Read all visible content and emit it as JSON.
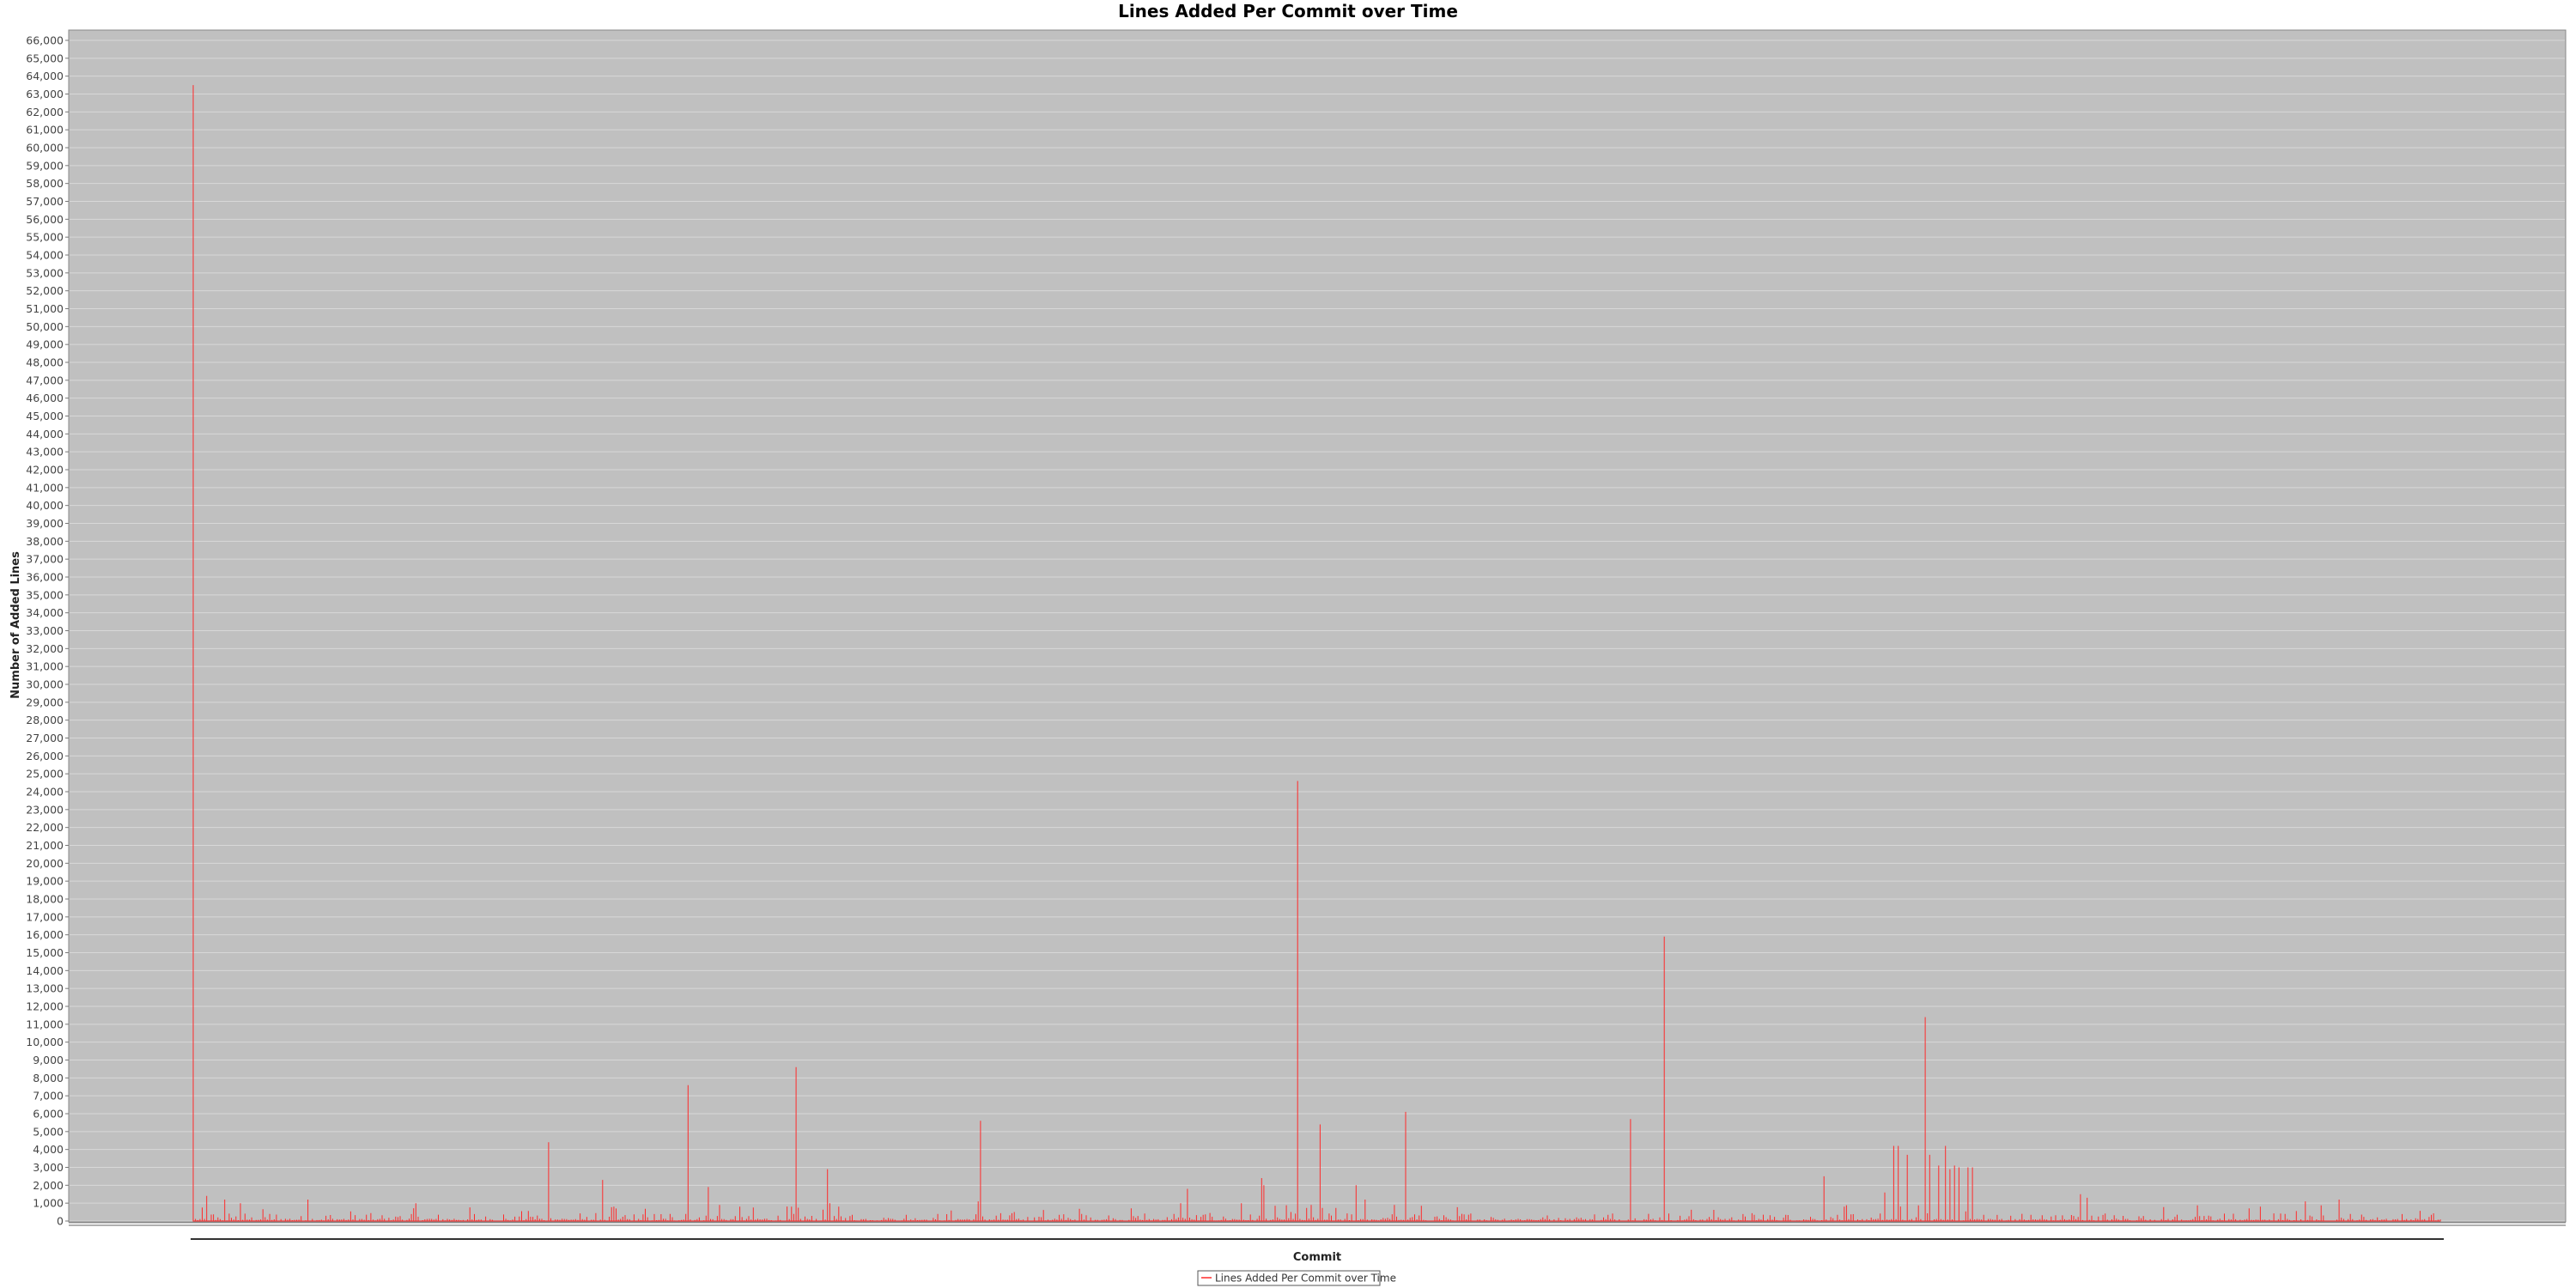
{
  "chart_data": {
    "type": "line",
    "title": "Lines Added Per Commit over Time",
    "xlabel": "Commit",
    "ylabel": "Number of Added Lines",
    "ylim": [
      0,
      66000
    ],
    "ytick_step": 1000,
    "xtick_labels": "none",
    "grid": true,
    "legend_position": "bottom-center",
    "colors": {
      "plot_background": "#c0c0c0",
      "gridline": "#d8d8d8",
      "series": "#ff2a2a"
    },
    "series": [
      {
        "name": "Lines Added Per Commit over Time",
        "color": "#ff2a2a",
        "x_range": [
          1,
          1000
        ],
        "spikes": [
          [
            1,
            63500
          ],
          [
            7,
            1400
          ],
          [
            15,
            1200
          ],
          [
            22,
            1000
          ],
          [
            52,
            1200
          ],
          [
            100,
            1000
          ],
          [
            159,
            4400
          ],
          [
            183,
            2300
          ],
          [
            189,
            700
          ],
          [
            220,
            400
          ],
          [
            221,
            7600
          ],
          [
            230,
            1900
          ],
          [
            235,
            900
          ],
          [
            269,
            8600
          ],
          [
            284,
            1000
          ],
          [
            283,
            2900
          ],
          [
            350,
            1100
          ],
          [
            351,
            5600
          ],
          [
            440,
            1000
          ],
          [
            443,
            1800
          ],
          [
            467,
            1000
          ],
          [
            476,
            2400
          ],
          [
            477,
            2000
          ],
          [
            492,
            24600
          ],
          [
            498,
            900
          ],
          [
            502,
            5400
          ],
          [
            518,
            2000
          ],
          [
            522,
            1200
          ],
          [
            535,
            900
          ],
          [
            540,
            6100
          ],
          [
            640,
            5700
          ],
          [
            655,
            15900
          ],
          [
            726,
            2500
          ],
          [
            753,
            1600
          ],
          [
            757,
            4200
          ],
          [
            759,
            4200
          ],
          [
            763,
            3700
          ],
          [
            771,
            11400
          ],
          [
            773,
            3700
          ],
          [
            777,
            3100
          ],
          [
            780,
            4200
          ],
          [
            782,
            2900
          ],
          [
            784,
            3100
          ],
          [
            786,
            3000
          ],
          [
            790,
            3000
          ],
          [
            792,
            3000
          ],
          [
            840,
            1500
          ],
          [
            843,
            1300
          ],
          [
            940,
            1100
          ],
          [
            955,
            1200
          ]
        ],
        "baseline_level": 300
      }
    ]
  }
}
